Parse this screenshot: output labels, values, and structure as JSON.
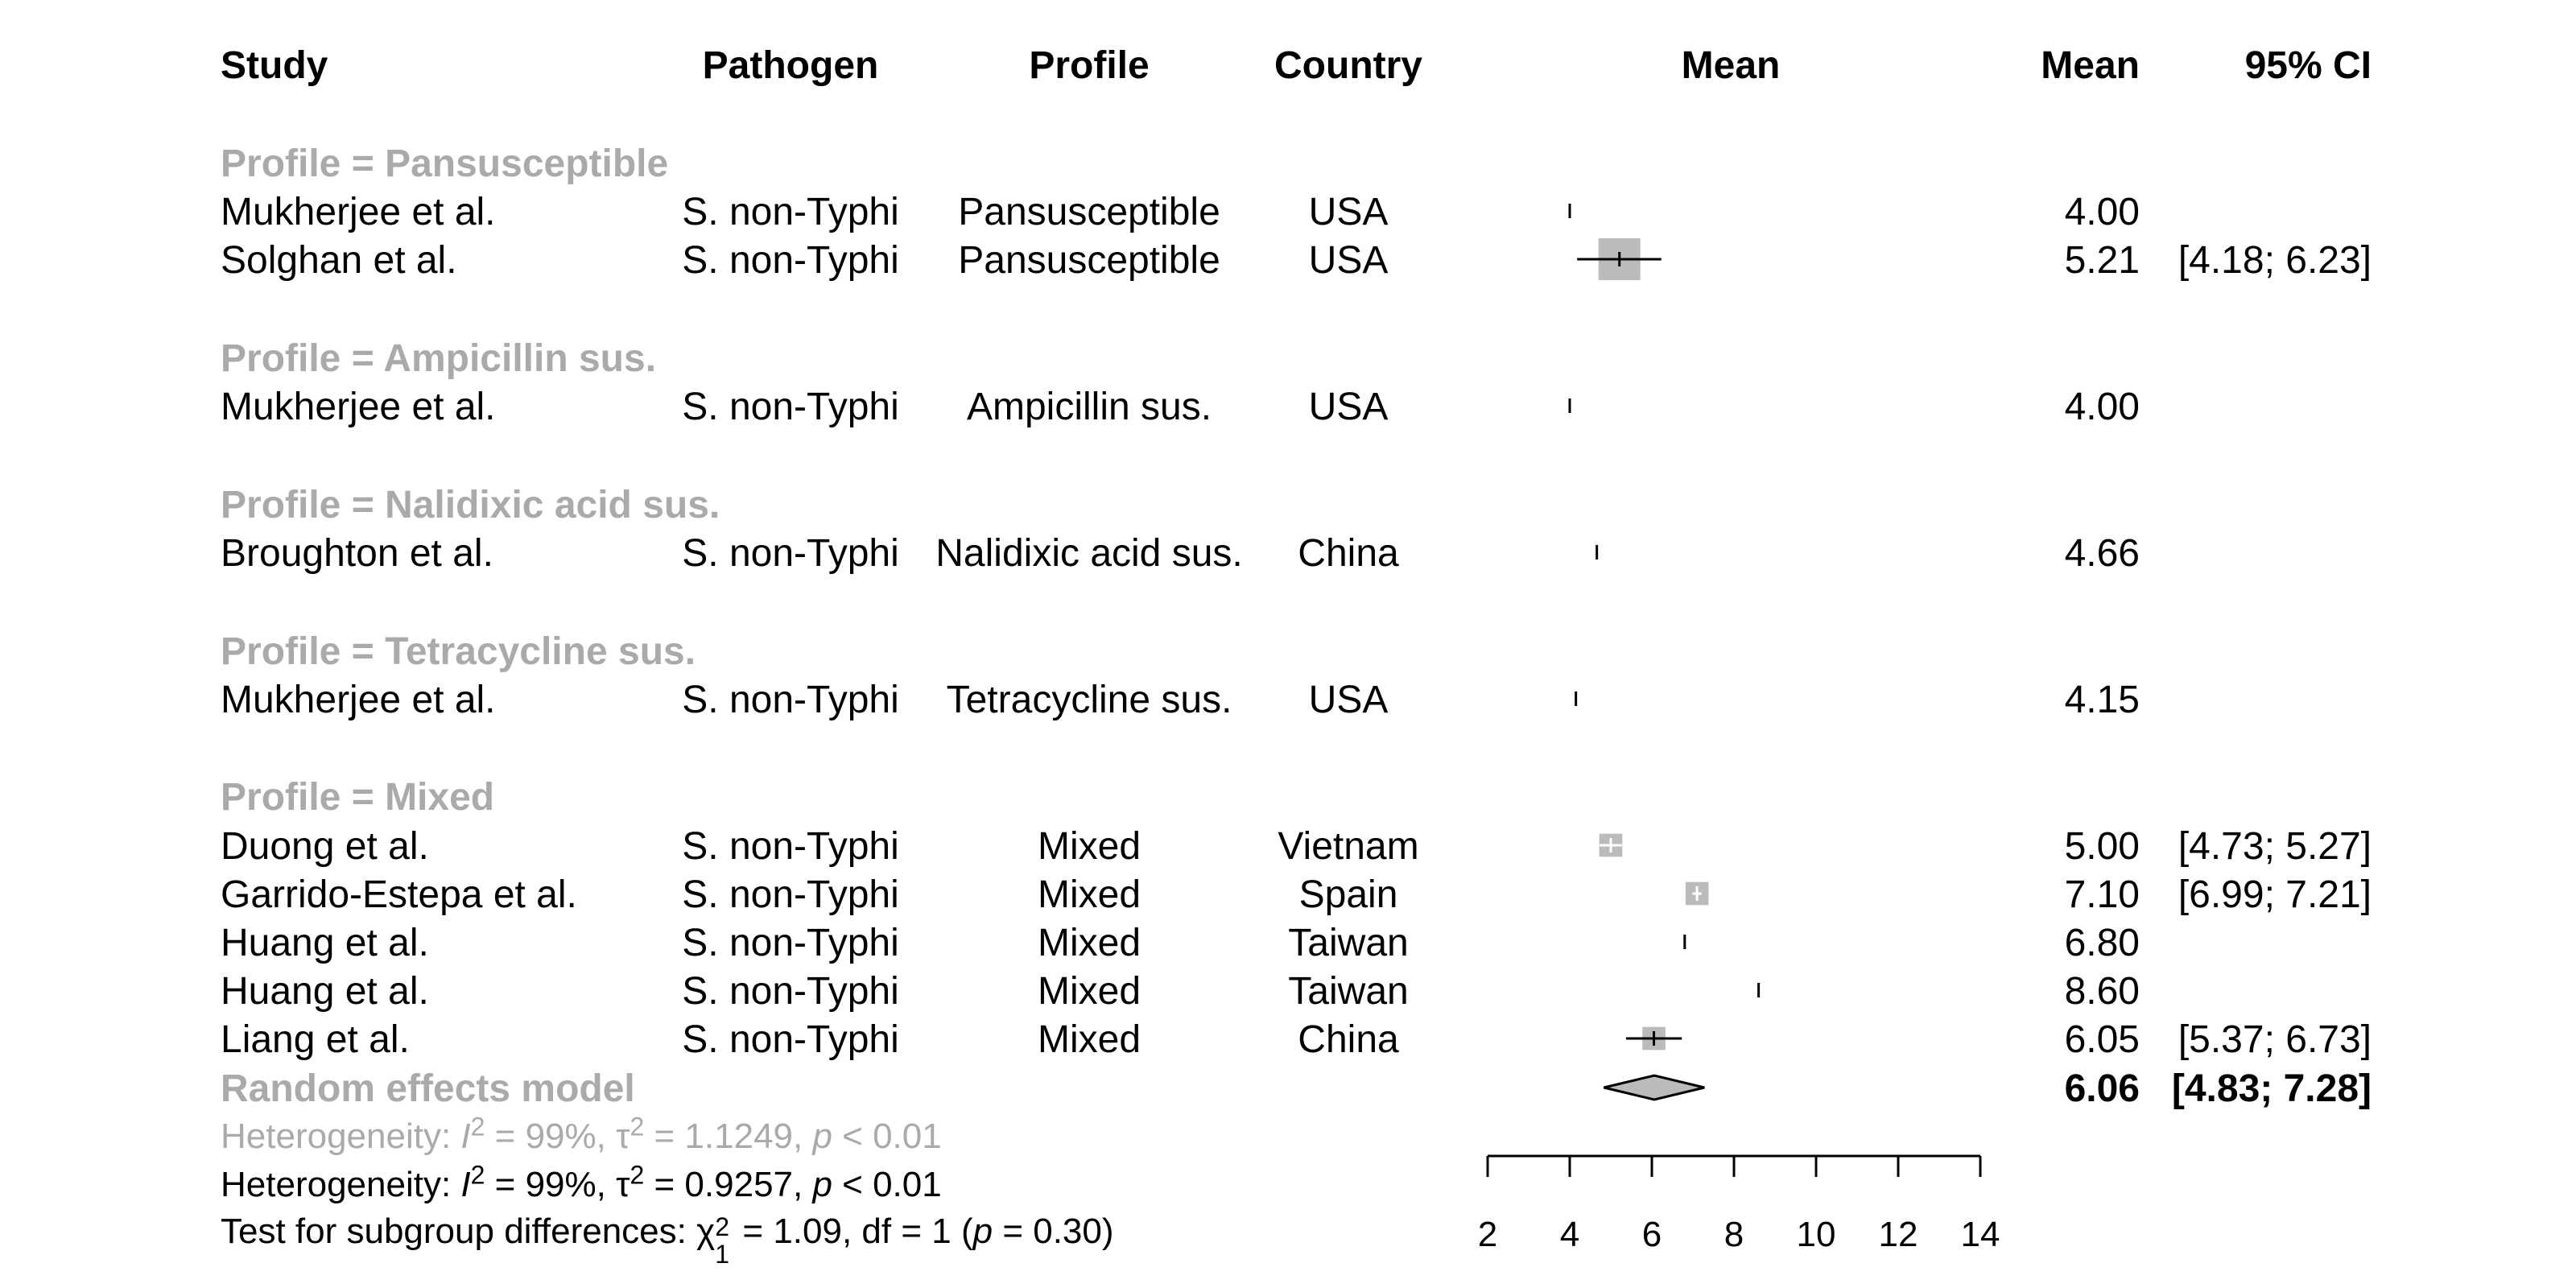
{
  "headers": {
    "study": "Study",
    "pathogen": "Pathogen",
    "profile": "Profile",
    "country": "Country",
    "mean_plot": "Mean",
    "mean": "Mean",
    "ci": "95% CI"
  },
  "subgroup_labels": [
    "Profile = Pansusceptible",
    "Profile = Ampicillin sus.",
    "Profile = Nalidixic acid sus.",
    "Profile = Tetracycline sus.",
    "Profile = Mixed"
  ],
  "studies": [
    {
      "study": "Mukherjee et al.",
      "pathogen": "S. non-Typhi",
      "profile": "Pansusceptible",
      "country": "USA",
      "mean_text": "4.00",
      "ci_text": ""
    },
    {
      "study": "Solghan et al.",
      "pathogen": "S. non-Typhi",
      "profile": "Pansusceptible",
      "country": "USA",
      "mean_text": "5.21",
      "ci_text": "[4.18; 6.23]"
    },
    {
      "study": "Mukherjee et al.",
      "pathogen": "S. non-Typhi",
      "profile": "Ampicillin sus.",
      "country": "USA",
      "mean_text": "4.00",
      "ci_text": ""
    },
    {
      "study": "Broughton et al.",
      "pathogen": "S. non-Typhi",
      "profile": "Nalidixic acid sus.",
      "country": "China",
      "mean_text": "4.66",
      "ci_text": ""
    },
    {
      "study": "Mukherjee et al.",
      "pathogen": "S. non-Typhi",
      "profile": "Tetracycline sus.",
      "country": "USA",
      "mean_text": "4.15",
      "ci_text": ""
    },
    {
      "study": "Duong et al.",
      "pathogen": "S. non-Typhi",
      "profile": "Mixed",
      "country": "Vietnam",
      "mean_text": "5.00",
      "ci_text": "[4.73; 5.27]"
    },
    {
      "study": "Garrido-Estepa et al.",
      "pathogen": "S. non-Typhi",
      "profile": "Mixed",
      "country": "Spain",
      "mean_text": "7.10",
      "ci_text": "[6.99; 7.21]"
    },
    {
      "study": "Huang et al.",
      "pathogen": "S. non-Typhi",
      "profile": "Mixed",
      "country": "Taiwan",
      "mean_text": "6.80",
      "ci_text": ""
    },
    {
      "study": "Huang et al.",
      "pathogen": "S. non-Typhi",
      "profile": "Mixed",
      "country": "Taiwan",
      "mean_text": "8.60",
      "ci_text": ""
    },
    {
      "study": "Liang et al.",
      "pathogen": "S. non-Typhi",
      "profile": "Mixed",
      "country": "China",
      "mean_text": "6.05",
      "ci_text": "[5.37; 6.73]"
    }
  ],
  "random_effects": {
    "label": "Random effects model",
    "mean_text": "6.06",
    "ci_text": "[4.83; 7.28]"
  },
  "footer": {
    "het_grey_prefix": "Heterogeneity: ",
    "het_grey_I": "I",
    "het_grey_I_sup": "2",
    "het_grey_mid1": " = 99%, τ",
    "het_grey_tau_sup": "2",
    "het_grey_mid2": " = 1.1249, ",
    "het_grey_p": "p",
    "het_grey_end": " < 0.01",
    "het_prefix": "Heterogeneity: ",
    "het_I": "I",
    "het_I_sup": "2",
    "het_mid1": " = 99%, τ",
    "het_tau_sup": "2",
    "het_mid2": " = 0.9257, ",
    "het_p": "p",
    "het_end": " < 0.01",
    "sub_prefix": "Test for subgroup differences: χ",
    "sub_sup": "2",
    "sub_sub": "1",
    "sub_mid": " = 1.09, df = 1 (",
    "sub_p": "p",
    "sub_end": " = 0.30)"
  },
  "chart_data": {
    "type": "forest",
    "x_axis": {
      "min": 2,
      "max": 14,
      "ticks": [
        2,
        4,
        6,
        8,
        10,
        12,
        14
      ]
    },
    "studies": [
      {
        "mean": 4.0,
        "lower": null,
        "upper": null,
        "weight_box": 0
      },
      {
        "mean": 5.21,
        "lower": 4.18,
        "upper": 6.23,
        "weight_box": 1.0
      },
      {
        "mean": 4.0,
        "lower": null,
        "upper": null,
        "weight_box": 0
      },
      {
        "mean": 4.66,
        "lower": null,
        "upper": null,
        "weight_box": 0
      },
      {
        "mean": 4.15,
        "lower": null,
        "upper": null,
        "weight_box": 0
      },
      {
        "mean": 5.0,
        "lower": 4.73,
        "upper": 5.27,
        "weight_box": 0.55
      },
      {
        "mean": 7.1,
        "lower": 6.99,
        "upper": 7.21,
        "weight_box": 0.55
      },
      {
        "mean": 6.8,
        "lower": null,
        "upper": null,
        "weight_box": 0
      },
      {
        "mean": 8.6,
        "lower": null,
        "upper": null,
        "weight_box": 0
      },
      {
        "mean": 6.05,
        "lower": 5.37,
        "upper": 6.73,
        "weight_box": 0.55
      }
    ],
    "random_effects": {
      "mean": 6.06,
      "lower": 4.83,
      "upper": 7.28
    }
  }
}
